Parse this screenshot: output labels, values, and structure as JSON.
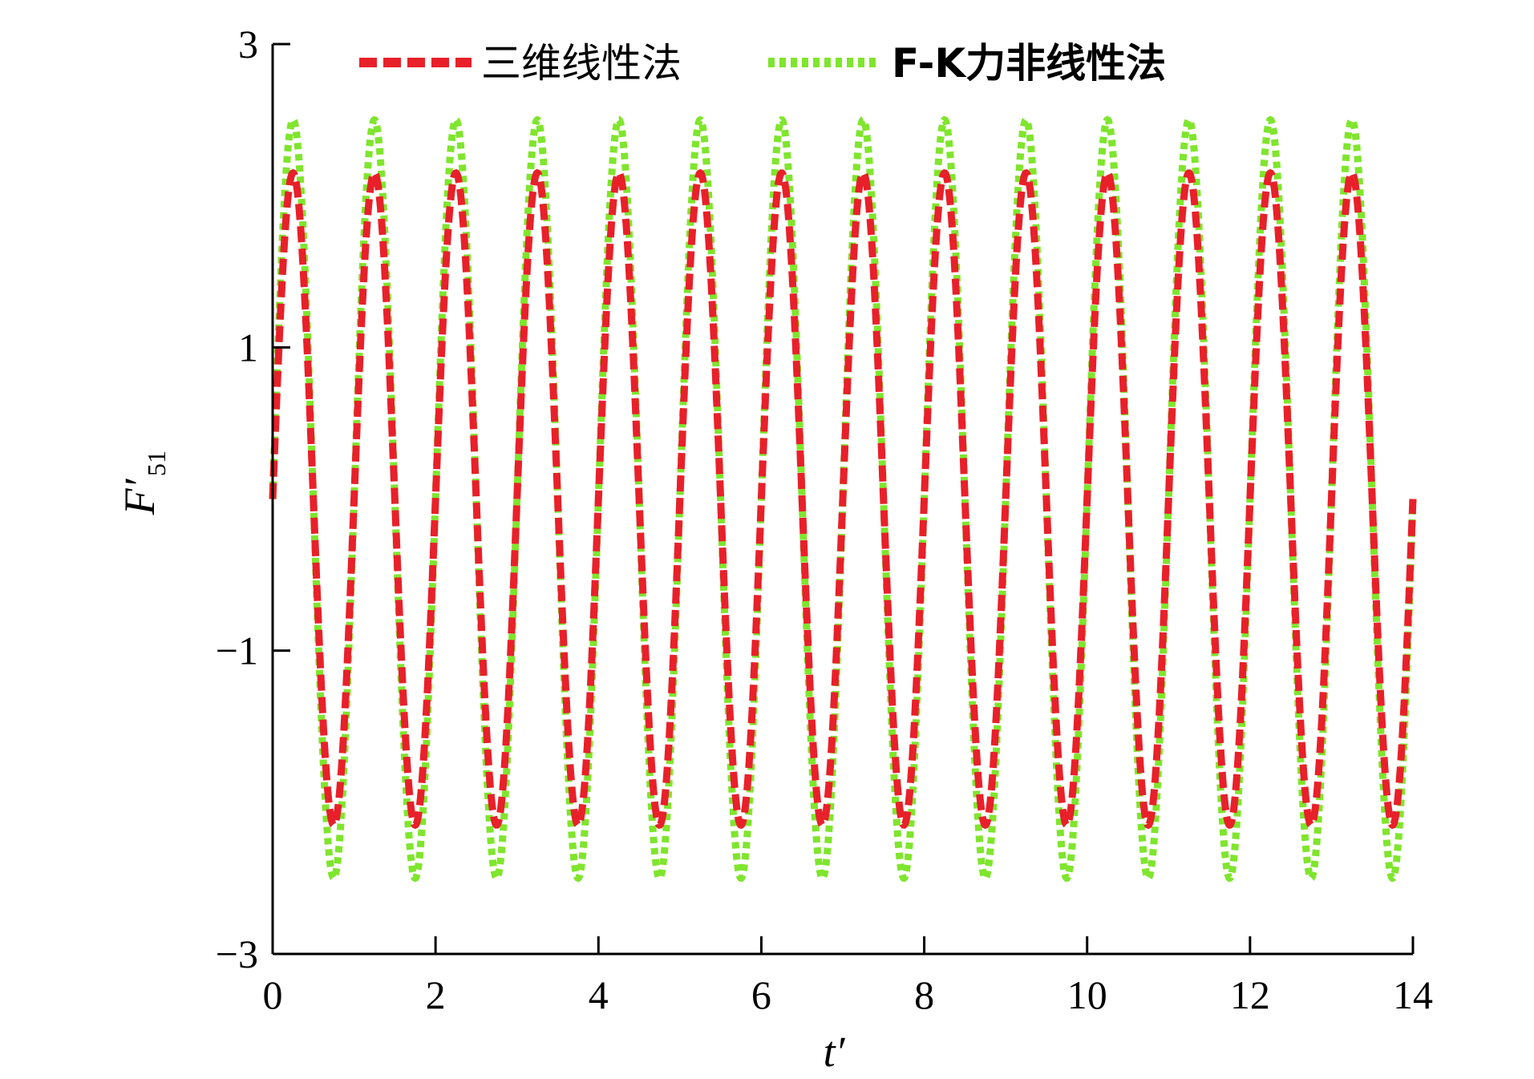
{
  "chart_data": {
    "type": "line",
    "title": "",
    "xlabel": "t′",
    "ylabel": "F′",
    "ylabel_subscript": "51",
    "xlim": [
      0,
      14
    ],
    "ylim": [
      -3,
      3
    ],
    "xticks": [
      0,
      2,
      4,
      6,
      8,
      10,
      12,
      14
    ],
    "yticks": [
      3,
      1,
      -1,
      -3
    ],
    "ytick_labels": [
      "3",
      "1",
      "−1",
      "−3"
    ],
    "grid": false,
    "legend_position": "top",
    "series": [
      {
        "name": "三维线性法",
        "color": "#e8202a",
        "style": "dashed",
        "function": "sine",
        "amplitude": 2.15,
        "period": 1.0,
        "offset": 0,
        "x_range": [
          0,
          14
        ]
      },
      {
        "name": "F-K力非线性法",
        "color": "#7fe52d",
        "style": "dotted",
        "function": "sine",
        "amplitude": 2.5,
        "period": 1.0,
        "offset": 0,
        "x_range": [
          0,
          14
        ]
      }
    ]
  }
}
